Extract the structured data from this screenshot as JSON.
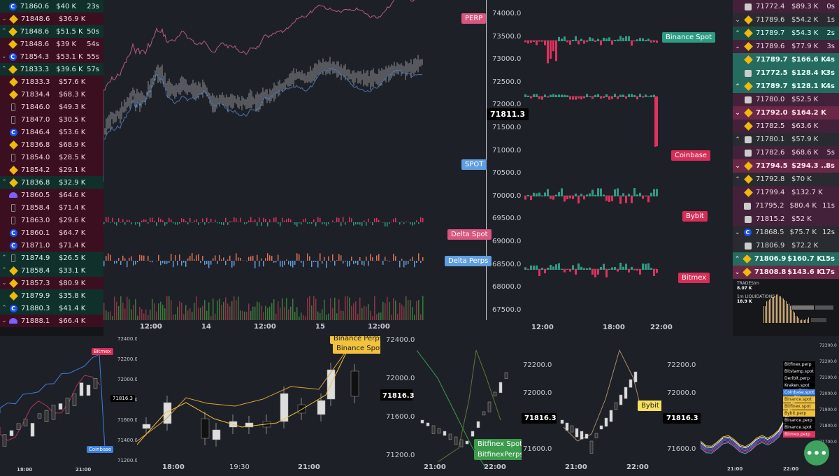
{
  "left_trades": [
    {
      "dir": "",
      "ex": "coinbase",
      "price": "71860.6",
      "size": "$40 K",
      "time": "23s",
      "cls": "buy"
    },
    {
      "dir": "v",
      "ex": "binance",
      "price": "71848.6",
      "size": "$36.9 K",
      "time": "",
      "cls": "sell"
    },
    {
      "dir": "^",
      "ex": "binance",
      "price": "71848.6",
      "size": "$51.5 K",
      "time": "50s",
      "cls": "buy"
    },
    {
      "dir": "",
      "ex": "binance",
      "price": "71848.6",
      "size": "$39 K",
      "time": "54s",
      "cls": "sell"
    },
    {
      "dir": "v",
      "ex": "coinbase",
      "price": "71854.3",
      "size": "$53.1 K",
      "time": "55s",
      "cls": "sell"
    },
    {
      "dir": "^",
      "ex": "binance",
      "price": "71833.3",
      "size": "$39.6 K",
      "time": "57s",
      "cls": "buy"
    },
    {
      "dir": "",
      "ex": "binance",
      "price": "71833.3",
      "size": "$57.6 K",
      "time": "",
      "cls": "sell"
    },
    {
      "dir": "",
      "ex": "binance",
      "price": "71834.4",
      "size": "$68.3 K",
      "time": "",
      "cls": "sell"
    },
    {
      "dir": "",
      "ex": "bybit",
      "price": "71846.0",
      "size": "$49.3 K",
      "time": "",
      "cls": "sell"
    },
    {
      "dir": "",
      "ex": "bybit",
      "price": "71847.0",
      "size": "$30.5 K",
      "time": "",
      "cls": "sell"
    },
    {
      "dir": "",
      "ex": "coinbase",
      "price": "71846.4",
      "size": "$53.6 K",
      "time": "",
      "cls": "sell"
    },
    {
      "dir": "",
      "ex": "binance",
      "price": "71836.8",
      "size": "$68.9 K",
      "time": "",
      "cls": "sell"
    },
    {
      "dir": "",
      "ex": "bybit",
      "price": "71854.0",
      "size": "$28.5 K",
      "time": "",
      "cls": "sell"
    },
    {
      "dir": "",
      "ex": "binance",
      "price": "71854.2",
      "size": "$29.1 K",
      "time": "",
      "cls": "sell"
    },
    {
      "dir": "^",
      "ex": "binance",
      "price": "71836.8",
      "size": "$32.9 K",
      "time": "",
      "cls": "buy"
    },
    {
      "dir": "",
      "ex": "kraken",
      "price": "71860.5",
      "size": "$64.6 K",
      "time": "",
      "cls": "sell"
    },
    {
      "dir": "",
      "ex": "bybit",
      "price": "71858.4",
      "size": "$71.4 K",
      "time": "",
      "cls": "sell"
    },
    {
      "dir": "",
      "ex": "bybit",
      "price": "71863.0",
      "size": "$29.6 K",
      "time": "",
      "cls": "sell"
    },
    {
      "dir": "",
      "ex": "coinbase",
      "price": "71860.1",
      "size": "$64.7 K",
      "time": "",
      "cls": "sell"
    },
    {
      "dir": "",
      "ex": "coinbase",
      "price": "71871.0",
      "size": "$71.4 K",
      "time": "",
      "cls": "sell"
    },
    {
      "dir": "^",
      "ex": "bybit",
      "price": "71874.9",
      "size": "$26.5 K",
      "time": "",
      "cls": "buy"
    },
    {
      "dir": "^",
      "ex": "binance",
      "price": "71858.4",
      "size": "$33.1 K",
      "time": "",
      "cls": "buy"
    },
    {
      "dir": "v",
      "ex": "binance",
      "price": "71857.3",
      "size": "$80.9 K",
      "time": "",
      "cls": "sell"
    },
    {
      "dir": "",
      "ex": "binance",
      "price": "71879.9",
      "size": "$35.8 K",
      "time": "",
      "cls": "buy"
    },
    {
      "dir": "^",
      "ex": "coinbase",
      "price": "71880.3",
      "size": "$41.4 K",
      "time": "",
      "cls": "buy"
    },
    {
      "dir": "v",
      "ex": "kraken",
      "price": "71888.1",
      "size": "$66.4 K",
      "time": "",
      "cls": "sell"
    }
  ],
  "main_chart": {
    "price_ticks": [
      "74000.0",
      "73500.0",
      "73000.0",
      "72500.0",
      "72000.0",
      "71500.0",
      "71000.0",
      "70500.0",
      "70000.0",
      "69500.0",
      "69000.0",
      "68500.0",
      "68000.0",
      "67500.0"
    ],
    "current_price": "71811.3",
    "labels": {
      "perp": "PERP",
      "spot": "SPOT",
      "delta_spot": "Delta Spot",
      "delta_perps": "Delta Perps"
    },
    "x_ticks": [
      "12:00",
      "14",
      "12:00",
      "15",
      "12:00"
    ]
  },
  "exchange_panel": {
    "labels": [
      "Binance Spot",
      "Coinbase",
      "Bybit",
      "Bitmex"
    ],
    "x_ticks": [
      "12:00",
      "18:00",
      "22:00"
    ]
  },
  "right_trades": [
    {
      "dir": "",
      "ex": "bybit",
      "price": "71772.4",
      "size": "$89.3 K",
      "time": "0s",
      "cls": "rr2"
    },
    {
      "dir": "v",
      "ex": "binance",
      "price": "71789.6",
      "size": "$54.2 K",
      "time": "1s",
      "cls": "rn"
    },
    {
      "dir": "^",
      "ex": "binance",
      "price": "71789.7",
      "size": "$54.3 K",
      "time": "2s",
      "cls": "rg2"
    },
    {
      "dir": "v",
      "ex": "binance",
      "price": "71789.6",
      "size": "$77.9 K",
      "time": "3s",
      "cls": "rr2"
    },
    {
      "dir": "",
      "ex": "binance",
      "price": "71789.7",
      "size": "$166.6 K",
      "time": "4s",
      "cls": "rg"
    },
    {
      "dir": "",
      "ex": "bybit",
      "price": "71772.5",
      "size": "$128.4 K",
      "time": "3s",
      "cls": "rg"
    },
    {
      "dir": "^",
      "ex": "binance",
      "price": "71789.7",
      "size": "$128.1 K",
      "time": "4s",
      "cls": "rg"
    },
    {
      "dir": "",
      "ex": "bybit",
      "price": "71780.0",
      "size": "$52.5 K",
      "time": "",
      "cls": "rr2"
    },
    {
      "dir": "v",
      "ex": "binance",
      "price": "71792.0",
      "size": "$164.2 K",
      "time": "",
      "cls": "rr"
    },
    {
      "dir": "",
      "ex": "binance",
      "price": "71782.5",
      "size": "$63.6 K",
      "time": "",
      "cls": "rr2"
    },
    {
      "dir": "^",
      "ex": "bybit",
      "price": "71780.1",
      "size": "$57.9 K",
      "time": "",
      "cls": "rn"
    },
    {
      "dir": "",
      "ex": "bybit",
      "price": "71782.6",
      "size": "$68.6 K",
      "time": "5s",
      "cls": "rr2"
    },
    {
      "dir": "v",
      "ex": "binance",
      "price": "71794.5",
      "size": "$294.3 ...",
      "time": "8s",
      "cls": "rr"
    },
    {
      "dir": "^",
      "ex": "binance",
      "price": "71792.8",
      "size": "$70 K",
      "time": "",
      "cls": "rn"
    },
    {
      "dir": "",
      "ex": "binance",
      "price": "71799.4",
      "size": "$132.7 K",
      "time": "",
      "cls": "rr2"
    },
    {
      "dir": "",
      "ex": "bybit",
      "price": "71795.2",
      "size": "$80.4 K",
      "time": "11s",
      "cls": "rr2"
    },
    {
      "dir": "",
      "ex": "bitmex",
      "price": "71815.2",
      "size": "$52 K",
      "time": "",
      "cls": "rr2"
    },
    {
      "dir": "v",
      "ex": "coinbase",
      "price": "71868.5",
      "size": "$75.7 K",
      "time": "12s",
      "cls": "rn"
    },
    {
      "dir": "",
      "ex": "bybit",
      "price": "71806.9",
      "size": "$72.2 K",
      "time": "",
      "cls": "rn"
    },
    {
      "dir": "^",
      "ex": "binance",
      "price": "71806.9",
      "size": "$160.7 K",
      "time": "15s",
      "cls": "rg"
    },
    {
      "dir": "v",
      "ex": "binance",
      "price": "71808.8",
      "size": "$143.6 K",
      "time": "17s",
      "cls": "rr"
    }
  ],
  "liq_mini": {
    "trades_label": "TRADES/m",
    "trades_val": "8.07 K",
    "liq_label": "1m LIQUIDATIONS",
    "liq_val": "18.9 K"
  },
  "bottom": {
    "c1": {
      "ticks": [
        "72400.0",
        "72200.0",
        "72000.0",
        "71800.0",
        "71600.0",
        "71400.0",
        "71200.0"
      ],
      "price": "71816.3",
      "labels": [
        "Bitmex",
        "Coinbase"
      ],
      "x": [
        "18:00",
        "21:00"
      ]
    },
    "c2": {
      "labels": [
        "Binance Perps",
        "Binance Spot"
      ],
      "x": [
        "18:00",
        "19:30",
        "21:00"
      ]
    },
    "c3": {
      "ticks": [
        "72400.0",
        "72000.0",
        "71600.0",
        "71200.0"
      ],
      "price": "71816.3",
      "labels": [
        "Bitfinex Spot",
        "BitfinexPerps"
      ],
      "x": [
        "21:00",
        "22:00"
      ]
    },
    "c4": {
      "ticks": [
        "72200.0",
        "72000.0",
        "71800.0",
        "71600.0"
      ],
      "price": "71816.3",
      "labels": [
        "Bybit"
      ],
      "x": [
        "21:00",
        "22:00"
      ]
    },
    "c5": {
      "ticks": [
        "72200.0",
        "72000.0",
        "71800.0",
        "71600.0"
      ],
      "price": "71816.3",
      "x": [
        "21:00",
        "22:00"
      ]
    },
    "c6": {
      "ticks": [
        "72300.0",
        "72200.0",
        "72100.0",
        "72000.0",
        "71900.0",
        "71800.0",
        "71700.0"
      ],
      "legend": [
        "Bitfinex.perp",
        "Bitstamp.spot",
        "Deribit.perp",
        "Kraken.spot",
        "Coinbase.spot",
        "Binance.spot",
        "Bitfinex.spot",
        "Bybit.perp",
        "Binance.perp",
        "Binance.spot",
        "Bitmex.perp"
      ],
      "x": [
        "21:00",
        "22:00"
      ]
    }
  },
  "colors": {
    "green": "#2e9b83",
    "red": "#e0325f",
    "perp": "#e66a8f",
    "spot": "#6aa6e6"
  }
}
